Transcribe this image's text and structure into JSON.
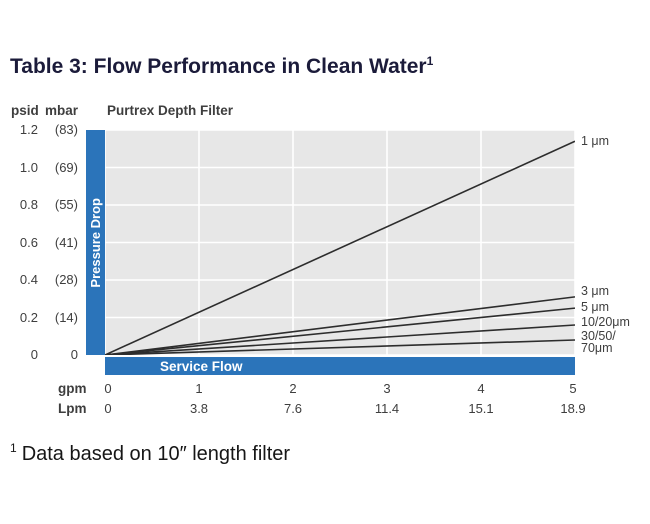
{
  "title": {
    "text": "Table 3: Flow Performance in Clean Water",
    "superscript": "1"
  },
  "chart": {
    "title": "Purtrex Depth Filter",
    "y_units": [
      "psid",
      "mbar"
    ],
    "y_axis_label": "Pressure Drop",
    "x_axis_label": "Service Flow",
    "x_unit_rows": [
      "gpm",
      "Lpm"
    ],
    "y_ticks": [
      {
        "psid": "1.2",
        "mbar": "(83)"
      },
      {
        "psid": "1.0",
        "mbar": "(69)"
      },
      {
        "psid": "0.8",
        "mbar": "(55)"
      },
      {
        "psid": "0.6",
        "mbar": "(41)"
      },
      {
        "psid": "0.4",
        "mbar": "(28)"
      },
      {
        "psid": "0.2",
        "mbar": "(14)"
      },
      {
        "psid": "0",
        "mbar": "0"
      }
    ],
    "x_ticks_gpm": [
      "0",
      "1",
      "2",
      "3",
      "4",
      "5"
    ],
    "x_ticks_lpm": [
      "0",
      "3.8",
      "7.6",
      "11.4",
      "15.1",
      "18.9"
    ],
    "right_labels": [
      "1 μm",
      "3 μm",
      "5 μm",
      "10/20μm",
      "30/50/",
      "70μm"
    ],
    "colors": {
      "accent_blue": "#2b74ba",
      "plot_bg": "#e7e7e7",
      "gridline": "#ffffff",
      "line": "#2d2d2d",
      "text": "#3e3e3e",
      "title_text": "#1b1b3a"
    }
  },
  "chart_data": {
    "type": "line",
    "title": "Purtrex Depth Filter",
    "xlabel": "Service Flow (gpm: 0–5 / Lpm: 0–18.9)",
    "ylabel": "Pressure Drop (psid: 0–1.2 / mbar: 0–83)",
    "xlim": [
      0,
      5
    ],
    "ylim": [
      0,
      1.2
    ],
    "grid": true,
    "legend_position": "right-edge-labels",
    "series": [
      {
        "name": "1 μm",
        "x": [
          0,
          5
        ],
        "y": [
          0,
          1.14
        ]
      },
      {
        "name": "3 μm",
        "x": [
          0,
          5
        ],
        "y": [
          0,
          0.31
        ]
      },
      {
        "name": "5 μm",
        "x": [
          0,
          5
        ],
        "y": [
          0,
          0.25
        ]
      },
      {
        "name": "10/20 μm",
        "x": [
          0,
          5
        ],
        "y": [
          0,
          0.16
        ]
      },
      {
        "name": "30/50/70 μm",
        "x": [
          0,
          5
        ],
        "y": [
          0,
          0.08
        ]
      }
    ]
  },
  "footnote": {
    "superscript": "1",
    "text": "Data based on 10″ length filter"
  }
}
